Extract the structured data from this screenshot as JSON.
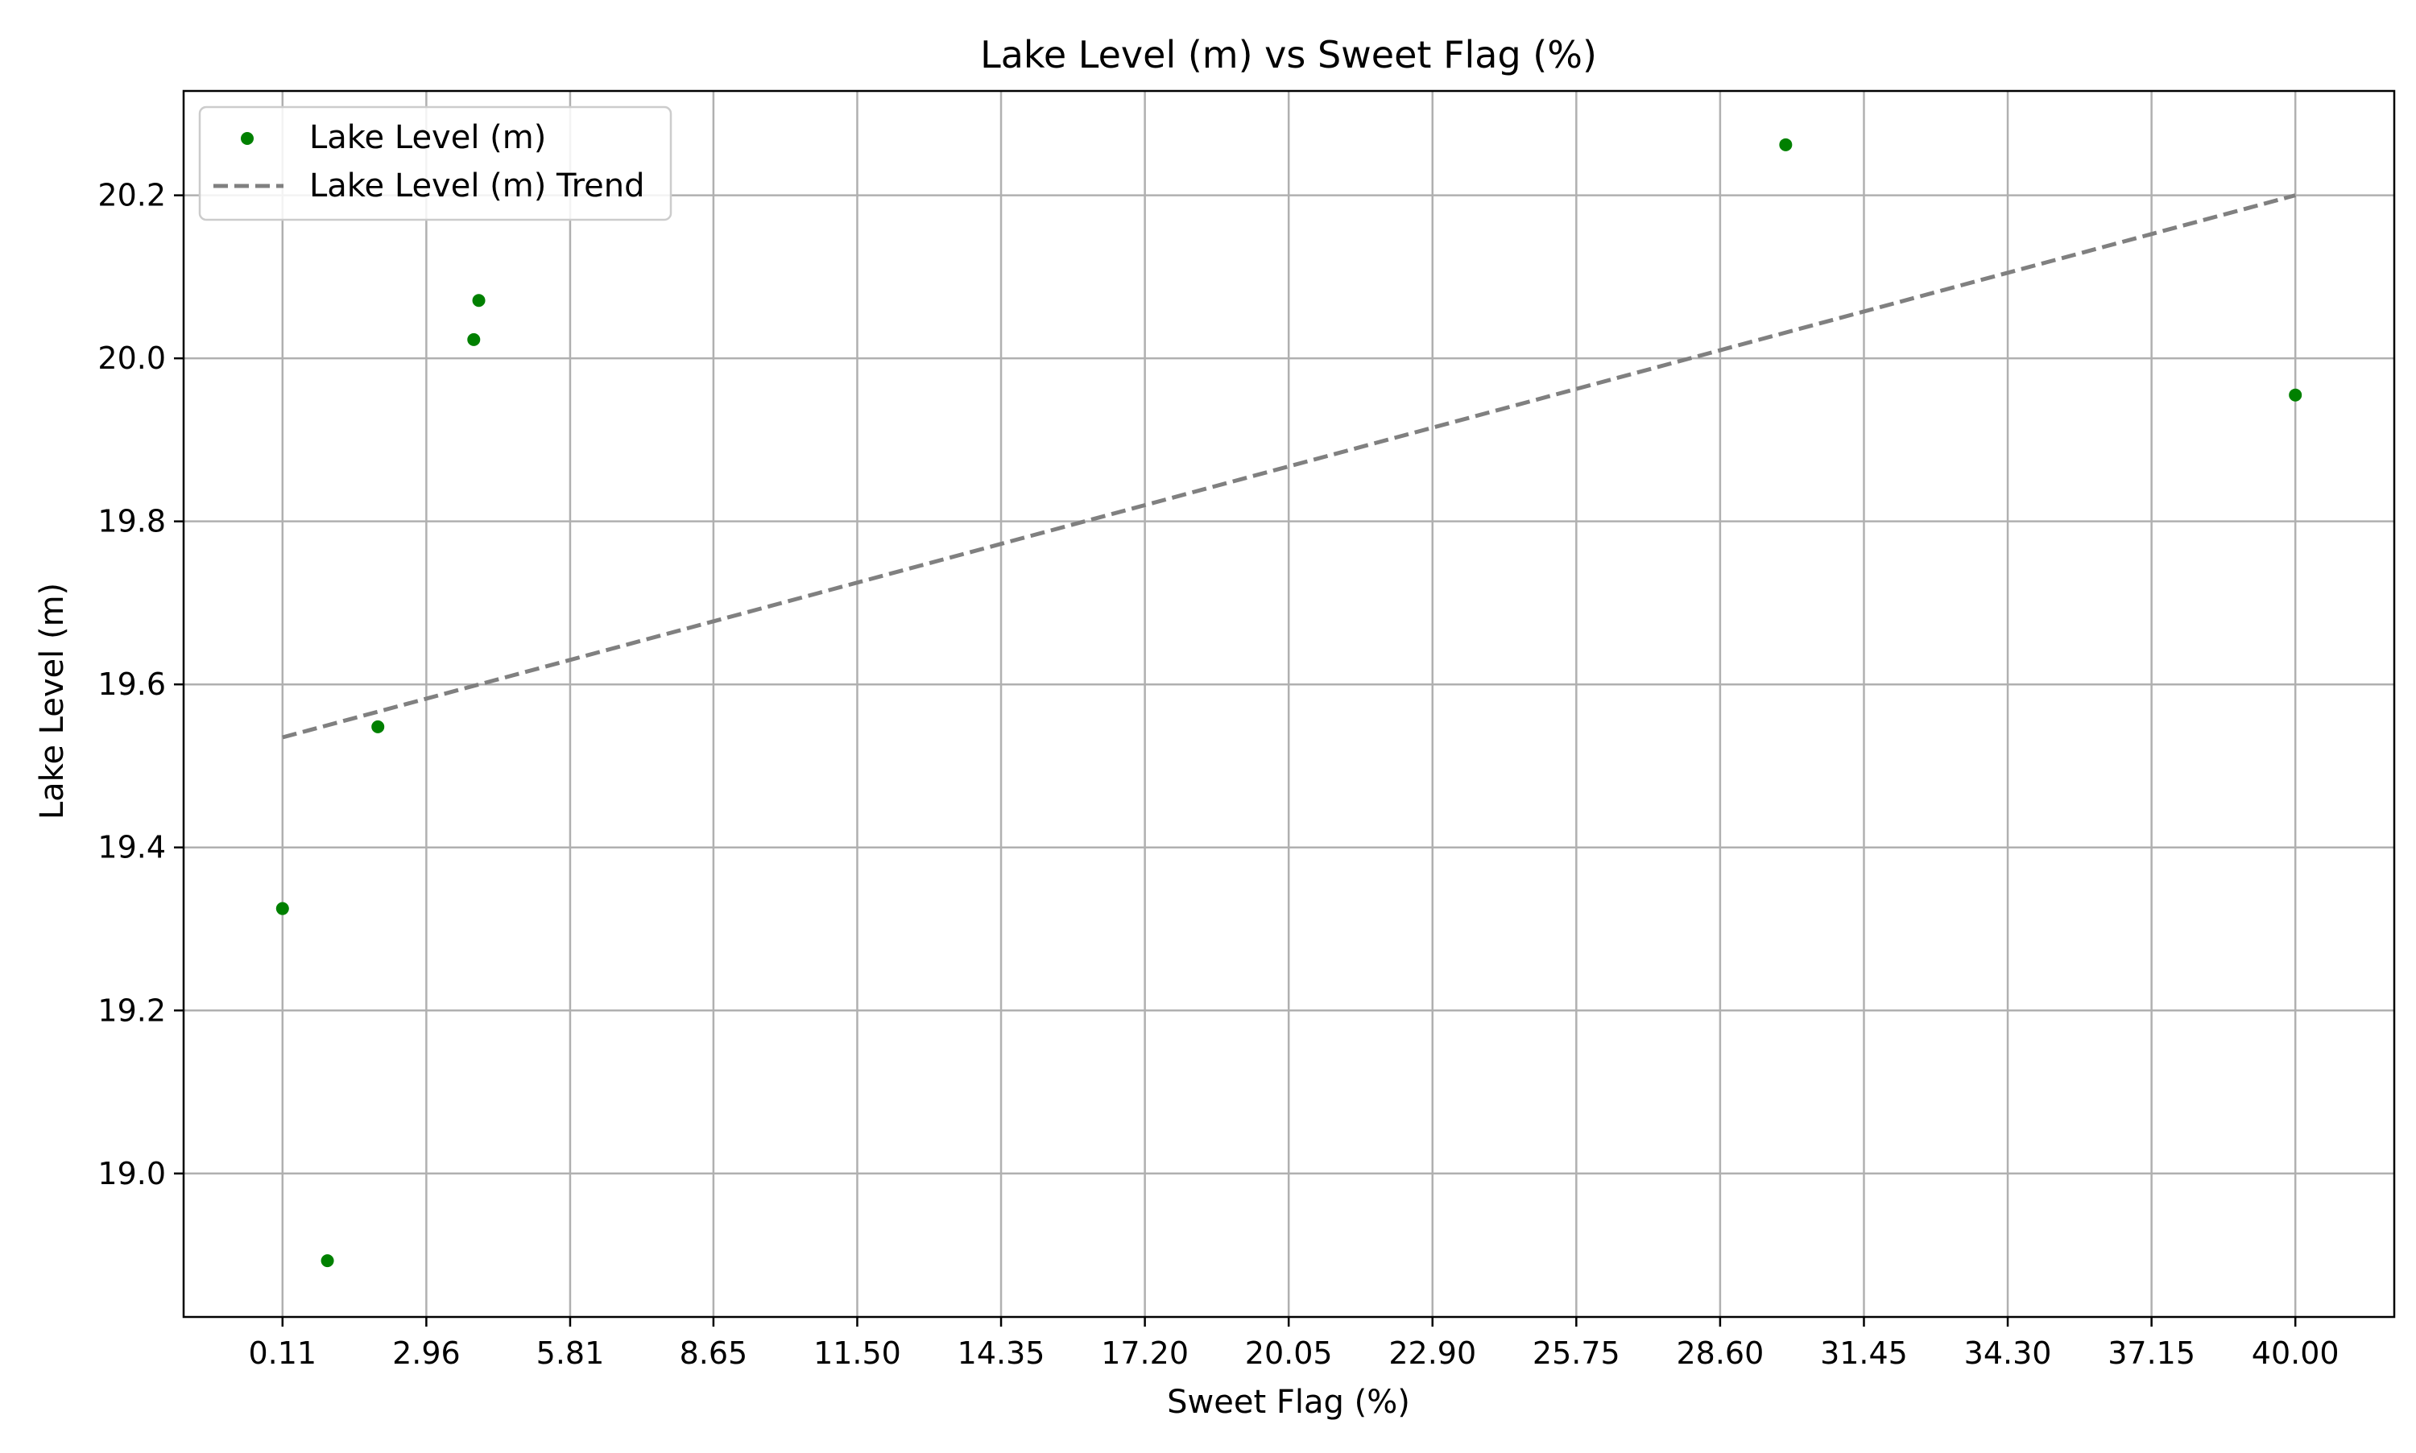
{
  "chart_data": {
    "type": "scatter",
    "title": "Lake Level (m) vs Sweet Flag (%)",
    "xlabel": "Sweet Flag (%)",
    "ylabel": "Lake Level (m)",
    "xlim": [
      -1.85,
      41.96
    ],
    "ylim": [
      18.824,
      20.328
    ],
    "x_ticks": [
      "0.11",
      "2.96",
      "5.81",
      "8.65",
      "11.50",
      "14.35",
      "17.20",
      "20.05",
      "22.90",
      "25.75",
      "28.60",
      "31.45",
      "34.30",
      "37.15",
      "40.00"
    ],
    "x_tick_values": [
      0.11,
      2.96,
      5.81,
      8.65,
      11.5,
      14.35,
      17.2,
      20.05,
      22.9,
      25.75,
      28.6,
      31.45,
      34.3,
      37.15,
      40.0
    ],
    "y_ticks": [
      "19.0",
      "19.2",
      "19.4",
      "19.6",
      "19.8",
      "20.0",
      "20.2"
    ],
    "y_tick_values": [
      19.0,
      19.2,
      19.4,
      19.6,
      19.8,
      20.0,
      20.2
    ],
    "grid": true,
    "legend_position": "top-left",
    "series": [
      {
        "name": "Lake Level (m)",
        "kind": "scatter",
        "color": "#008000",
        "points": [
          {
            "x": 0.11,
            "y": 19.325
          },
          {
            "x": 1.0,
            "y": 18.893
          },
          {
            "x": 2.0,
            "y": 19.548
          },
          {
            "x": 3.9,
            "y": 20.023
          },
          {
            "x": 4.0,
            "y": 20.071
          },
          {
            "x": 29.9,
            "y": 20.262
          },
          {
            "x": 40.0,
            "y": 19.955
          }
        ]
      },
      {
        "name": "Lake Level (m) Trend",
        "kind": "line",
        "color": "#808080",
        "dash": "dashed",
        "points": [
          {
            "x": 0.11,
            "y": 19.535
          },
          {
            "x": 40.0,
            "y": 20.2
          }
        ]
      }
    ]
  }
}
